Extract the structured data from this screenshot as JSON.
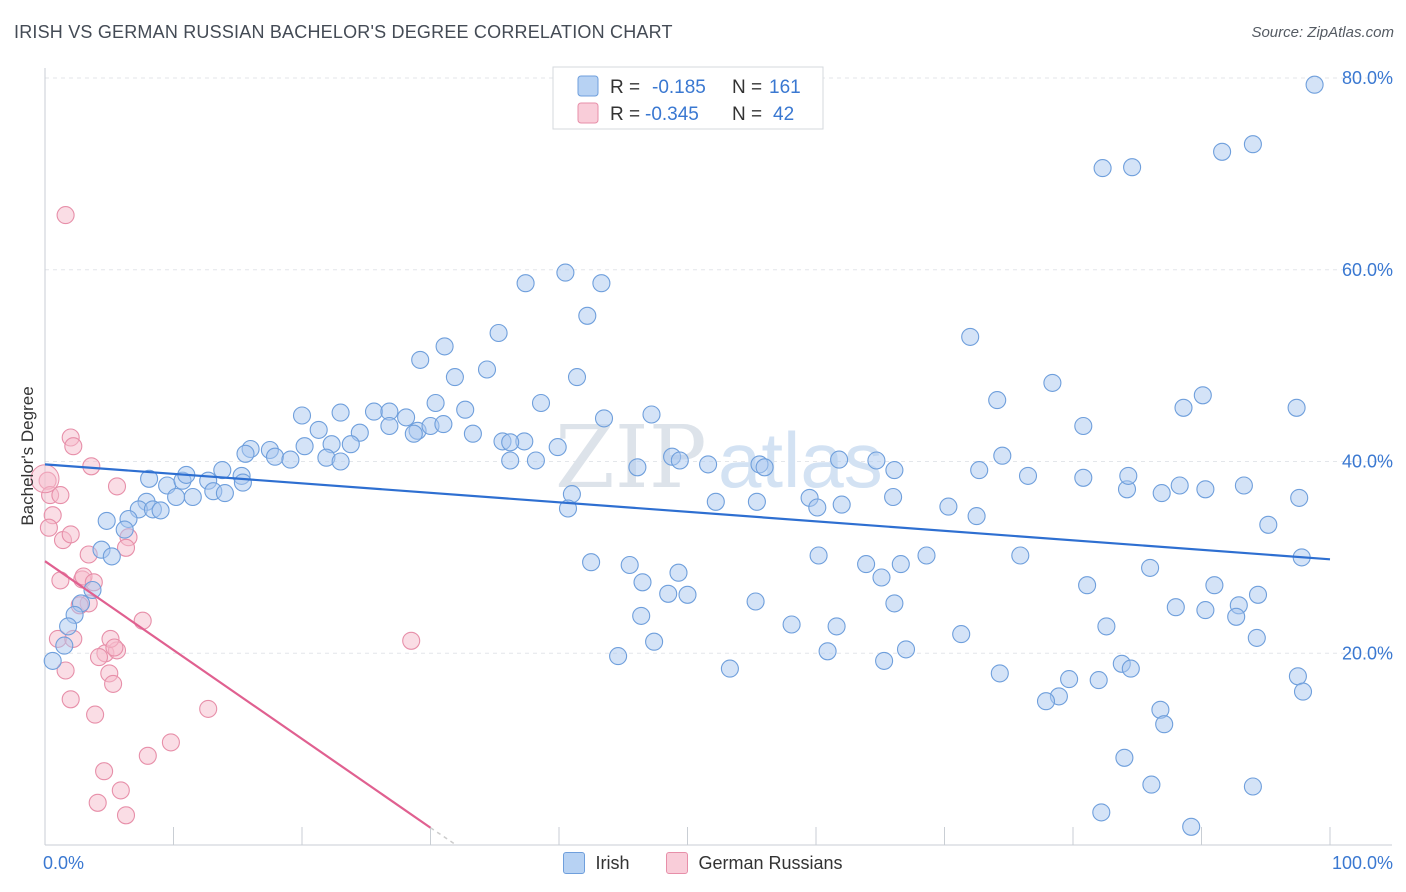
{
  "header": {
    "title": "IRISH VS GERMAN RUSSIAN BACHELOR'S DEGREE CORRELATION CHART",
    "source": "Source: ZipAtlas.com"
  },
  "watermark": {
    "zip": "ZIP",
    "atlas": "atlas"
  },
  "colors": {
    "irish_fill": "#a9c8ef",
    "irish_stroke": "#6f9fdc",
    "irish_line": "#2e6fd1",
    "german_fill": "#f6bccc",
    "german_stroke": "#e78fa9",
    "german_line": "#e06090",
    "axis_text": "#3a78d1",
    "grid": "#e3e6ea"
  },
  "chart_data": {
    "type": "scatter",
    "title": "IRISH VS GERMAN RUSSIAN BACHELOR'S DEGREE CORRELATION CHART",
    "xlabel": "",
    "ylabel": "Bachelor's Degree",
    "xlim": [
      0,
      100
    ],
    "ylim": [
      0,
      80
    ],
    "x_tick_labels": [
      "0.0%",
      "100.0%"
    ],
    "y_tick_labels": [
      "20.0%",
      "40.0%",
      "60.0%",
      "80.0%"
    ],
    "y_ticks": [
      20,
      40,
      60,
      80
    ],
    "grid": "horizontal-dashed",
    "legend_stats": [
      {
        "series": "Irish",
        "r_label": "R =",
        "r_value": "-0.185",
        "n_label": "N =",
        "n_value": "161"
      },
      {
        "series": "German Russians",
        "r_label": "R =",
        "r_value": "-0.345",
        "n_label": "N =",
        "n_value": "42"
      }
    ],
    "legend_placement": "top-center",
    "series": [
      {
        "name": "Irish",
        "trend": {
          "x": [
            0,
            100
          ],
          "y": [
            39.7,
            29.8
          ]
        },
        "points": [
          [
            82.3,
            70.6
          ],
          [
            84.6,
            70.7
          ],
          [
            91.6,
            72.3
          ],
          [
            94.0,
            73.1
          ],
          [
            98.8,
            79.3
          ],
          [
            37.4,
            58.6
          ],
          [
            40.5,
            59.7
          ],
          [
            43.3,
            58.6
          ],
          [
            42.2,
            55.2
          ],
          [
            72.0,
            53.0
          ],
          [
            35.3,
            53.4
          ],
          [
            31.1,
            52.0
          ],
          [
            29.2,
            50.6
          ],
          [
            31.9,
            48.8
          ],
          [
            34.4,
            49.6
          ],
          [
            41.4,
            48.8
          ],
          [
            78.4,
            48.2
          ],
          [
            90.1,
            46.9
          ],
          [
            74.1,
            46.4
          ],
          [
            97.4,
            45.6
          ],
          [
            88.6,
            45.6
          ],
          [
            30.4,
            46.1
          ],
          [
            38.6,
            46.1
          ],
          [
            32.7,
            45.4
          ],
          [
            25.6,
            45.2
          ],
          [
            26.8,
            45.2
          ],
          [
            28.1,
            44.6
          ],
          [
            23.0,
            45.1
          ],
          [
            20.0,
            44.8
          ],
          [
            43.5,
            44.5
          ],
          [
            47.2,
            44.9
          ],
          [
            80.8,
            43.7
          ],
          [
            21.3,
            43.3
          ],
          [
            24.5,
            43.0
          ],
          [
            26.8,
            43.7
          ],
          [
            29.0,
            43.2
          ],
          [
            30.0,
            43.7
          ],
          [
            31.0,
            43.9
          ],
          [
            28.7,
            42.9
          ],
          [
            33.3,
            42.9
          ],
          [
            37.3,
            42.1
          ],
          [
            35.6,
            42.1
          ],
          [
            36.2,
            42.0
          ],
          [
            39.9,
            41.5
          ],
          [
            22.3,
            41.8
          ],
          [
            23.8,
            41.8
          ],
          [
            20.2,
            41.6
          ],
          [
            17.5,
            41.2
          ],
          [
            16.0,
            41.3
          ],
          [
            15.6,
            40.8
          ],
          [
            17.9,
            40.5
          ],
          [
            19.1,
            40.2
          ],
          [
            21.9,
            40.4
          ],
          [
            23.0,
            40.0
          ],
          [
            38.2,
            40.1
          ],
          [
            36.2,
            40.1
          ],
          [
            48.8,
            40.5
          ],
          [
            49.4,
            40.1
          ],
          [
            46.1,
            39.4
          ],
          [
            51.6,
            39.7
          ],
          [
            55.6,
            39.7
          ],
          [
            66.1,
            39.1
          ],
          [
            56.0,
            39.4
          ],
          [
            72.7,
            39.1
          ],
          [
            8.1,
            38.2
          ],
          [
            9.5,
            37.5
          ],
          [
            10.7,
            38.0
          ],
          [
            11.0,
            38.6
          ],
          [
            12.7,
            38.0
          ],
          [
            13.8,
            39.1
          ],
          [
            15.3,
            38.5
          ],
          [
            15.4,
            37.8
          ],
          [
            13.1,
            36.9
          ],
          [
            14.0,
            36.7
          ],
          [
            10.2,
            36.3
          ],
          [
            11.5,
            36.3
          ],
          [
            7.9,
            35.8
          ],
          [
            7.3,
            35.0
          ],
          [
            8.4,
            35.0
          ],
          [
            9.0,
            34.9
          ],
          [
            6.5,
            34.0
          ],
          [
            6.2,
            32.9
          ],
          [
            4.8,
            33.8
          ],
          [
            41.0,
            36.6
          ],
          [
            40.7,
            35.1
          ],
          [
            52.2,
            35.8
          ],
          [
            55.4,
            35.8
          ],
          [
            72.5,
            34.3
          ],
          [
            59.5,
            36.2
          ],
          [
            66.0,
            36.3
          ],
          [
            62.0,
            35.5
          ],
          [
            60.1,
            35.2
          ],
          [
            70.3,
            35.3
          ],
          [
            80.8,
            38.3
          ],
          [
            84.2,
            37.1
          ],
          [
            88.3,
            37.5
          ],
          [
            93.3,
            37.5
          ],
          [
            86.9,
            36.7
          ],
          [
            90.3,
            37.1
          ],
          [
            84.3,
            38.5
          ],
          [
            76.5,
            38.5
          ],
          [
            74.5,
            40.6
          ],
          [
            61.8,
            40.2
          ],
          [
            64.7,
            40.1
          ],
          [
            97.6,
            36.2
          ],
          [
            4.4,
            30.8
          ],
          [
            5.2,
            30.1
          ],
          [
            3.7,
            26.6
          ],
          [
            2.8,
            25.2
          ],
          [
            2.3,
            24.0
          ],
          [
            1.8,
            22.8
          ],
          [
            1.5,
            20.8
          ],
          [
            0.6,
            19.2
          ],
          [
            42.5,
            29.5
          ],
          [
            45.5,
            29.2
          ],
          [
            49.3,
            28.4
          ],
          [
            46.5,
            27.4
          ],
          [
            60.2,
            30.2
          ],
          [
            63.9,
            29.3
          ],
          [
            66.6,
            29.3
          ],
          [
            68.6,
            30.2
          ],
          [
            65.1,
            27.9
          ],
          [
            75.9,
            30.2
          ],
          [
            81.1,
            27.1
          ],
          [
            86.0,
            28.9
          ],
          [
            91.0,
            27.1
          ],
          [
            97.8,
            30.0
          ],
          [
            95.2,
            33.4
          ],
          [
            94.4,
            26.1
          ],
          [
            94.3,
            21.6
          ],
          [
            92.9,
            25.0
          ],
          [
            46.4,
            23.9
          ],
          [
            48.5,
            26.2
          ],
          [
            50.0,
            26.1
          ],
          [
            55.3,
            25.4
          ],
          [
            58.1,
            23.0
          ],
          [
            61.6,
            22.8
          ],
          [
            66.1,
            25.2
          ],
          [
            71.3,
            22.0
          ],
          [
            82.6,
            22.8
          ],
          [
            88.0,
            24.8
          ],
          [
            90.3,
            24.5
          ],
          [
            92.7,
            23.8
          ],
          [
            47.4,
            21.2
          ],
          [
            44.6,
            19.7
          ],
          [
            53.3,
            18.4
          ],
          [
            60.9,
            20.2
          ],
          [
            67.0,
            20.4
          ],
          [
            65.3,
            19.2
          ],
          [
            83.8,
            18.9
          ],
          [
            84.5,
            18.4
          ],
          [
            82.0,
            17.2
          ],
          [
            74.3,
            17.9
          ],
          [
            79.7,
            17.3
          ],
          [
            97.5,
            17.6
          ],
          [
            97.9,
            16.0
          ],
          [
            78.9,
            15.5
          ],
          [
            77.9,
            15.0
          ],
          [
            86.8,
            14.1
          ],
          [
            87.1,
            12.6
          ],
          [
            84.0,
            9.1
          ],
          [
            86.1,
            6.3
          ],
          [
            94.0,
            6.1
          ],
          [
            82.2,
            3.4
          ],
          [
            89.2,
            1.9
          ]
        ]
      },
      {
        "name": "German Russians",
        "trend": {
          "x": [
            0,
            30
          ],
          "y": [
            29.6,
            1.8
          ]
        },
        "trend_dashed": {
          "x": [
            30,
            32
          ],
          "y": [
            1.8,
            0
          ]
        },
        "points": [
          [
            1.6,
            65.7
          ],
          [
            2.0,
            42.5
          ],
          [
            2.2,
            41.6
          ],
          [
            3.6,
            39.5
          ],
          [
            0.2,
            38.0
          ],
          [
            0.4,
            36.5
          ],
          [
            1.2,
            36.5
          ],
          [
            5.6,
            37.4
          ],
          [
            0.6,
            34.4
          ],
          [
            0.3,
            33.1
          ],
          [
            1.4,
            31.8
          ],
          [
            2.0,
            32.4
          ],
          [
            6.5,
            32.1
          ],
          [
            3.4,
            30.3
          ],
          [
            6.3,
            31.0
          ],
          [
            1.2,
            27.6
          ],
          [
            2.9,
            27.7
          ],
          [
            3.0,
            28.0
          ],
          [
            3.8,
            27.4
          ],
          [
            1.0,
            21.5
          ],
          [
            2.2,
            21.5
          ],
          [
            4.7,
            20.0
          ],
          [
            5.6,
            20.3
          ],
          [
            4.2,
            19.6
          ],
          [
            7.6,
            23.4
          ],
          [
            5.1,
            21.5
          ],
          [
            5.4,
            20.6
          ],
          [
            1.6,
            18.2
          ],
          [
            5.0,
            17.9
          ],
          [
            5.3,
            16.8
          ],
          [
            2.0,
            15.2
          ],
          [
            3.9,
            13.6
          ],
          [
            12.7,
            14.2
          ],
          [
            9.8,
            10.7
          ],
          [
            8.0,
            9.3
          ],
          [
            4.6,
            7.7
          ],
          [
            5.9,
            5.7
          ],
          [
            4.1,
            4.4
          ],
          [
            6.3,
            3.1
          ],
          [
            28.5,
            21.3
          ],
          [
            3.4,
            25.2
          ],
          [
            2.7,
            25.0
          ]
        ]
      }
    ]
  }
}
